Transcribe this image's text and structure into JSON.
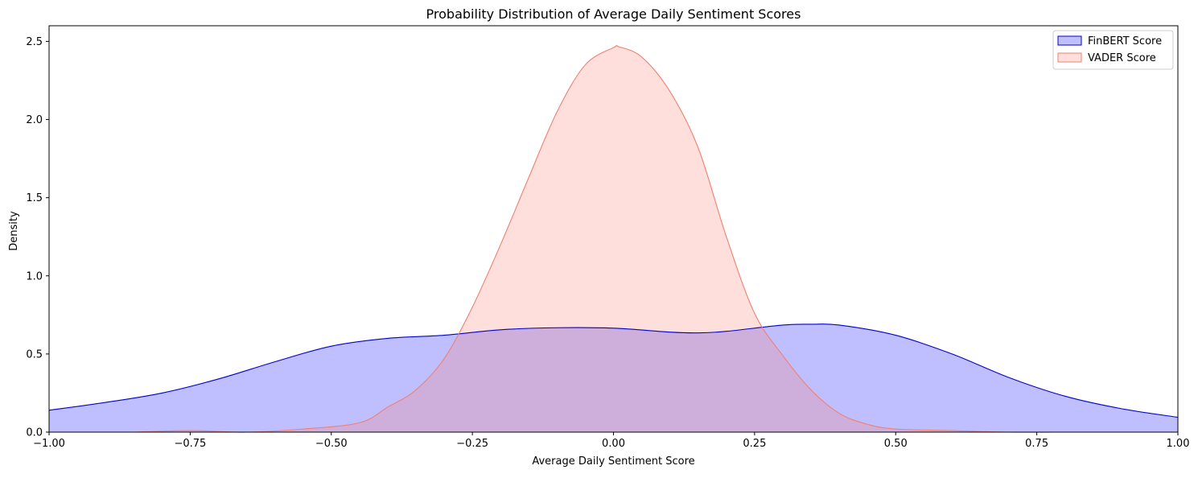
{
  "chart_data": {
    "type": "area",
    "title": "Probability Distribution of Average Daily Sentiment Scores",
    "xlabel": "Average Daily Sentiment Score",
    "ylabel": "Density",
    "xlim": [
      -1.0,
      1.0
    ],
    "ylim": [
      0,
      2.6
    ],
    "x_ticks": [
      -1.0,
      -0.75,
      -0.5,
      -0.25,
      0.0,
      0.25,
      0.5,
      0.75,
      1.0
    ],
    "x_tick_labels": [
      "−1.00",
      "−0.75",
      "−0.50",
      "−0.25",
      "0.00",
      "0.25",
      "0.50",
      "0.75",
      "1.00"
    ],
    "y_ticks": [
      0.0,
      0.5,
      1.0,
      1.5,
      2.0,
      2.5
    ],
    "y_tick_labels": [
      "0.0",
      "0.5",
      "1.0",
      "1.5",
      "2.0",
      "2.5"
    ],
    "grid": false,
    "legend_position": "top-right",
    "series": [
      {
        "name": "FinBERT Score",
        "line_color": "#0000cc",
        "fill_color": "#0000ff",
        "x": [
          -1.0,
          -0.9,
          -0.8,
          -0.7,
          -0.6,
          -0.5,
          -0.4,
          -0.3,
          -0.2,
          -0.1,
          0.0,
          0.1,
          0.15,
          0.2,
          0.3,
          0.35,
          0.4,
          0.5,
          0.6,
          0.7,
          0.8,
          0.9,
          1.0
        ],
        "y": [
          0.14,
          0.19,
          0.25,
          0.34,
          0.45,
          0.55,
          0.6,
          0.62,
          0.655,
          0.668,
          0.665,
          0.64,
          0.635,
          0.645,
          0.685,
          0.69,
          0.685,
          0.62,
          0.5,
          0.35,
          0.23,
          0.15,
          0.095
        ]
      },
      {
        "name": "VADER Score",
        "line_color": "#f08070",
        "fill_color": "#fa8072",
        "x": [
          -0.85,
          -0.75,
          -0.65,
          -0.55,
          -0.45,
          -0.4,
          -0.35,
          -0.3,
          -0.25,
          -0.2,
          -0.15,
          -0.1,
          -0.05,
          0.0,
          0.01,
          0.05,
          0.1,
          0.15,
          0.2,
          0.25,
          0.3,
          0.35,
          0.4,
          0.45,
          0.5,
          0.6,
          0.7,
          0.78
        ],
        "y": [
          0.0,
          0.01,
          0.0,
          0.02,
          0.06,
          0.16,
          0.27,
          0.47,
          0.8,
          1.2,
          1.63,
          2.05,
          2.35,
          2.46,
          2.465,
          2.4,
          2.18,
          1.82,
          1.25,
          0.76,
          0.49,
          0.27,
          0.12,
          0.05,
          0.02,
          0.01,
          0.0,
          0.0
        ]
      }
    ]
  }
}
